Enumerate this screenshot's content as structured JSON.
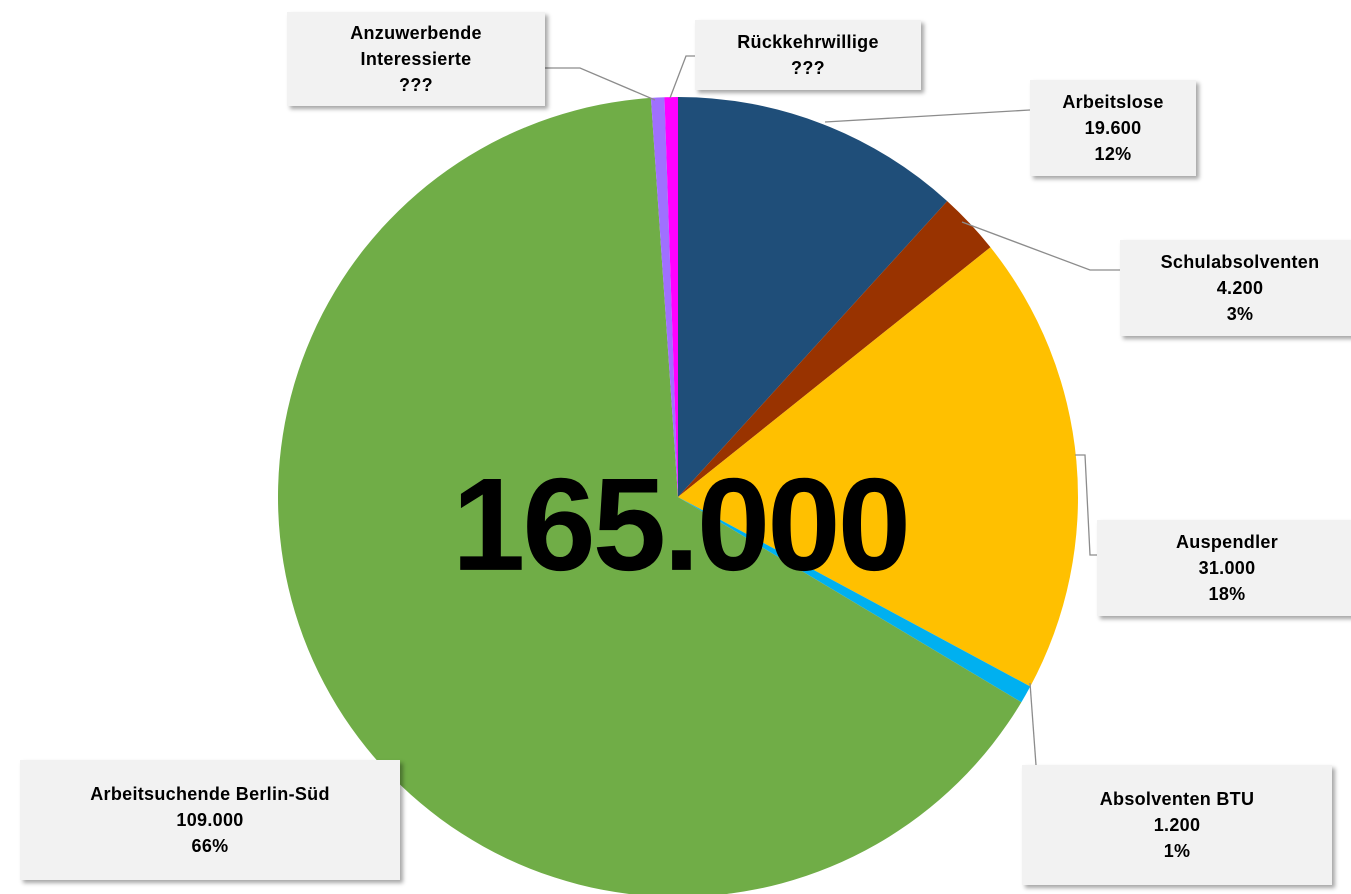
{
  "chart_data": {
    "type": "pie",
    "center_label": "165.000",
    "categories": [
      "Arbeitslose",
      "Schulabsolventen",
      "Auspendler",
      "Absolventen BTU",
      "Arbeitsuchende Berlin-Süd",
      "Anzuwerbende Interessierte",
      "Rückkehrwillige"
    ],
    "values": [
      19600,
      4200,
      31000,
      1200,
      109000,
      900,
      900
    ],
    "value_labels": [
      "19.600",
      "4.200",
      "31.000",
      "1.200",
      "109.000",
      "???",
      "???"
    ],
    "percentages": [
      12,
      3,
      18,
      1,
      66,
      null,
      null
    ],
    "percentage_labels": [
      "12%",
      "3%",
      "18%",
      "1%",
      "66%",
      null,
      null
    ],
    "colors": [
      "#1f4e79",
      "#993300",
      "#ffc000",
      "#00b0f0",
      "#70ad47",
      "#a070ff",
      "#ff00ff"
    ]
  }
}
